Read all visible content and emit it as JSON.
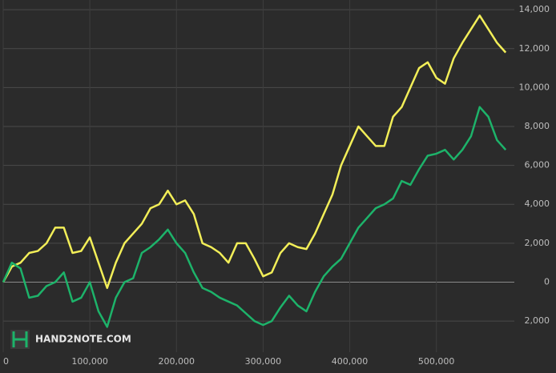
{
  "chart_data": {
    "type": "line",
    "watermark": "HAND2NOTE.COM",
    "x": [
      0,
      10000,
      20000,
      30000,
      40000,
      50000,
      60000,
      70000,
      80000,
      90000,
      100000,
      110000,
      120000,
      130000,
      140000,
      150000,
      160000,
      170000,
      180000,
      190000,
      200000,
      210000,
      220000,
      230000,
      240000,
      250000,
      260000,
      270000,
      280000,
      290000,
      300000,
      310000,
      320000,
      330000,
      340000,
      350000,
      360000,
      370000,
      380000,
      390000,
      400000,
      410000,
      420000,
      430000,
      440000,
      450000,
      460000,
      470000,
      480000,
      490000,
      500000,
      510000,
      520000,
      530000,
      540000,
      550000,
      560000,
      570000,
      580000
    ],
    "series": [
      {
        "color": "#f2ee58",
        "values": [
          0,
          800,
          1000,
          1500,
          1600,
          2000,
          2800,
          2800,
          1500,
          1600,
          2300,
          1000,
          -300,
          1000,
          2000,
          2500,
          3000,
          3800,
          4000,
          4700,
          4000,
          4200,
          3500,
          2000,
          1800,
          1500,
          1000,
          2000,
          2000,
          1200,
          300,
          500,
          1500,
          2000,
          1800,
          1700,
          2500,
          3500,
          4500,
          6000,
          7000,
          8000,
          7500,
          7000,
          7000,
          8500,
          9000,
          10000,
          11000,
          11300,
          10500,
          10200,
          11500,
          12300,
          13000,
          13700,
          13000,
          12300,
          11800
        ]
      },
      {
        "color": "#1db36a",
        "values": [
          0,
          1000,
          700,
          -800,
          -700,
          -200,
          0,
          500,
          -1000,
          -800,
          0,
          -1500,
          -2300,
          -800,
          0,
          200,
          1500,
          1800,
          2200,
          2700,
          2000,
          1500,
          500,
          -300,
          -500,
          -800,
          -1000,
          -1200,
          -1600,
          -2000,
          -2200,
          -2000,
          -1300,
          -700,
          -1200,
          -1500,
          -500,
          300,
          800,
          1200,
          2000,
          2800,
          3300,
          3800,
          4000,
          4300,
          5200,
          5000,
          5800,
          6500,
          6600,
          6800,
          6300,
          6800,
          7500,
          9000,
          8500,
          7300,
          6800
        ]
      }
    ],
    "xlim": [
      0,
      590000
    ],
    "ylim": [
      -3600,
      14500
    ],
    "xticks": [
      0,
      {
        "value": 100000,
        "label": "100,000"
      },
      {
        "value": 200000,
        "label": "200,000"
      },
      {
        "value": 300000,
        "label": "300,000"
      },
      {
        "value": 400000,
        "label": "400,000"
      },
      {
        "value": 500000,
        "label": "500,000"
      }
    ],
    "yticks": [
      {
        "value": -2000,
        "label": "2,000"
      },
      0,
      {
        "value": 2000,
        "label": "2,000"
      },
      {
        "value": 4000,
        "label": "4,000"
      },
      {
        "value": 6000,
        "label": "6,000"
      },
      {
        "value": 8000,
        "label": "8,000"
      },
      {
        "value": 10000,
        "label": "10,000"
      },
      {
        "value": 12000,
        "label": "12,000"
      },
      {
        "value": 14000,
        "label": "14,000"
      }
    ],
    "grid": true
  }
}
